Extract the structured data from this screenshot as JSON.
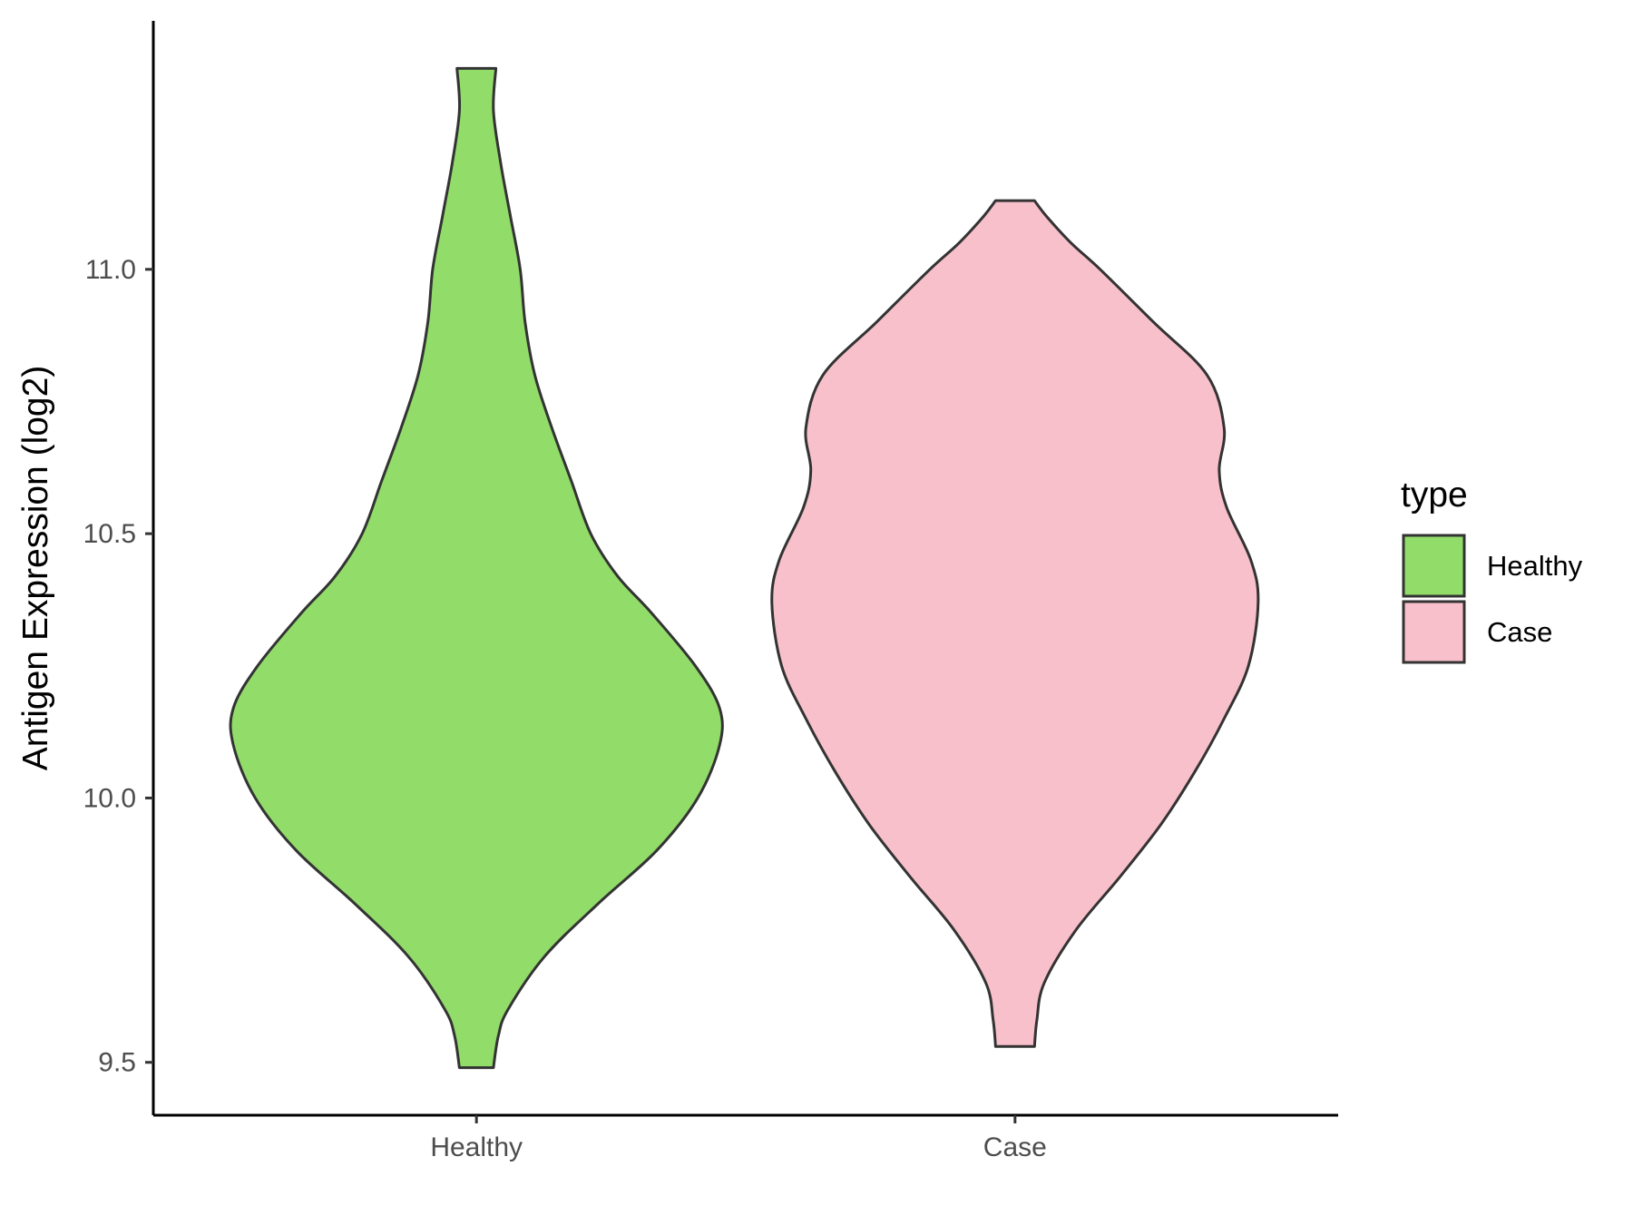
{
  "chart_data": {
    "type": "violin",
    "ylabel": "Antigen Expression (log2)",
    "xlabel": "",
    "categories": [
      "Healthy",
      "Case"
    ],
    "yticks": [
      9.5,
      10.0,
      10.5,
      11.0
    ],
    "ytick_labels": [
      "9.5",
      "10.0",
      "10.5",
      "11.0"
    ],
    "ylim": [
      9.4,
      11.47
    ],
    "grid": false,
    "legend": {
      "title": "type",
      "position": "right",
      "entries": [
        {
          "label": "Healthy",
          "color": "#92dc6a"
        },
        {
          "label": "Case",
          "color": "#f8c0cb"
        }
      ]
    },
    "series": [
      {
        "name": "Healthy",
        "color": "#92dc6a",
        "min": 9.49,
        "max": 11.38,
        "density_profile": [
          [
            9.49,
            0.07
          ],
          [
            9.55,
            0.09
          ],
          [
            9.6,
            0.13
          ],
          [
            9.7,
            0.28
          ],
          [
            9.8,
            0.5
          ],
          [
            9.9,
            0.74
          ],
          [
            10.0,
            0.91
          ],
          [
            10.1,
            1.0
          ],
          [
            10.17,
            1.0
          ],
          [
            10.25,
            0.9
          ],
          [
            10.35,
            0.72
          ],
          [
            10.42,
            0.58
          ],
          [
            10.5,
            0.47
          ],
          [
            10.6,
            0.39
          ],
          [
            10.7,
            0.31
          ],
          [
            10.8,
            0.24
          ],
          [
            10.9,
            0.2
          ],
          [
            11.0,
            0.18
          ],
          [
            11.1,
            0.14
          ],
          [
            11.2,
            0.1
          ],
          [
            11.3,
            0.07
          ],
          [
            11.38,
            0.08
          ]
        ]
      },
      {
        "name": "Case",
        "color": "#f8c0cb",
        "min": 9.53,
        "max": 11.13,
        "density_profile": [
          [
            9.53,
            0.08
          ],
          [
            9.58,
            0.09
          ],
          [
            9.65,
            0.12
          ],
          [
            9.75,
            0.25
          ],
          [
            9.85,
            0.43
          ],
          [
            9.95,
            0.6
          ],
          [
            10.05,
            0.74
          ],
          [
            10.15,
            0.86
          ],
          [
            10.25,
            0.96
          ],
          [
            10.37,
            1.0
          ],
          [
            10.45,
            0.97
          ],
          [
            10.55,
            0.87
          ],
          [
            10.62,
            0.84
          ],
          [
            10.7,
            0.86
          ],
          [
            10.8,
            0.79
          ],
          [
            10.9,
            0.57
          ],
          [
            11.0,
            0.35
          ],
          [
            11.05,
            0.23
          ],
          [
            11.1,
            0.13
          ],
          [
            11.13,
            0.08
          ]
        ]
      }
    ]
  }
}
